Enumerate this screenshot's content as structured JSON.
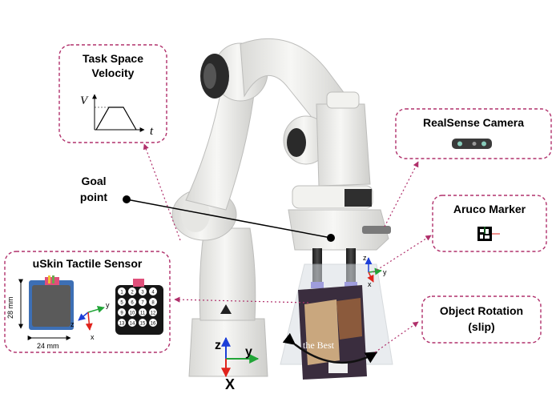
{
  "callouts": {
    "task_space_title_line1": "Task Space",
    "task_space_title_line2": "Velocity",
    "velocity_axis_v": "V",
    "velocity_axis_t": "t",
    "goal_line1": "Goal",
    "goal_line2": "point",
    "realsense_title": "RealSense Camera",
    "aruco_title": "Aruco Marker",
    "uskin_title": "uSkin Tactile Sensor",
    "object_rotation_line1": "Object Rotation",
    "object_rotation_line2": "(slip)"
  },
  "sensor": {
    "dim_vertical": "28 mm",
    "dim_horizontal": "24 mm",
    "axis_y": "y",
    "axis_z": "z",
    "axis_x": "x",
    "taxel_numbers": [
      "1",
      "2",
      "3",
      "4",
      "5",
      "6",
      "7",
      "8",
      "9",
      "10",
      "11",
      "12",
      "13",
      "14",
      "15",
      "16"
    ]
  },
  "gripper_frame": {
    "axis_z": "z",
    "axis_y": "y",
    "axis_x": "x"
  },
  "base_frame": {
    "axis_z": "z",
    "axis_y": "y",
    "axis_x": "X"
  },
  "package": {
    "brand": "the Best"
  },
  "colors": {
    "callout_border": "#b0306b",
    "axis_red": "#e0231c",
    "axis_green": "#22a538",
    "axis_blue": "#1d3fd8",
    "robot_body": "#eeeeec",
    "robot_joint": "#2a2a2a"
  }
}
